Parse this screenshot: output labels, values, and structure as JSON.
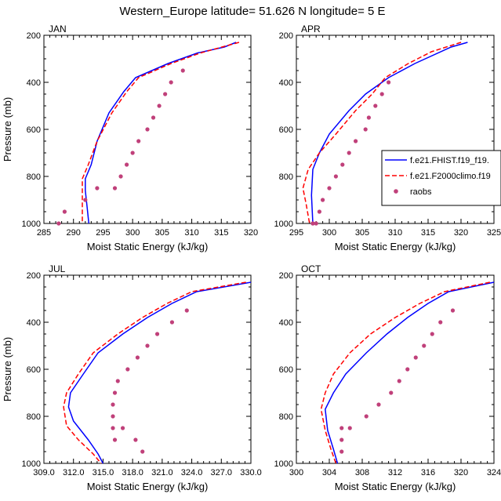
{
  "figure": {
    "title": "Western_Europe  latitude= 51.626 N longitude= 5 E"
  },
  "legend": {
    "entries": [
      {
        "label": "f.e21.FHIST.f19_f19.",
        "color": "#0000ff",
        "style": "solid"
      },
      {
        "label": "f.e21.F2000climo.f19",
        "color": "#ff0000",
        "style": "dashed"
      },
      {
        "label": "raobs",
        "color": "#c0407a",
        "style": "marker"
      }
    ]
  },
  "chart_data": [
    {
      "type": "line",
      "panel_label": "JAN",
      "xlabel": "Moist Static Energy (kJ/kg)",
      "ylabel": "Pressure (mb)",
      "xlim": [
        285,
        320
      ],
      "ylim": [
        1000,
        200
      ],
      "xticks": [
        285,
        290,
        295,
        300,
        305,
        310,
        315,
        320
      ],
      "xtick_labels": [
        "285",
        "290",
        "295",
        "300",
        "305",
        "310",
        "315",
        "320"
      ],
      "yticks": [
        200,
        400,
        600,
        800,
        1000
      ],
      "ytick_labels": [
        "200",
        "400",
        "600",
        "800",
        "1000"
      ],
      "series": [
        {
          "name": "f.e21.FHIST.f19_f19.",
          "x": [
            317.5,
            315.5,
            311.0,
            306.0,
            300.5,
            298.5,
            296.0,
            294.0,
            293.0,
            292.0,
            292.0,
            292.3,
            292.6
          ],
          "y": [
            230,
            250,
            275,
            320,
            380,
            440,
            530,
            650,
            750,
            810,
            860,
            930,
            1000
          ]
        },
        {
          "name": "f.e21.F2000climo.f19",
          "x": [
            318.0,
            311.5,
            306.5,
            301.0,
            299.0,
            296.5,
            294.0,
            292.5,
            291.5,
            291.5,
            291.5
          ],
          "y": [
            230,
            275,
            320,
            380,
            440,
            530,
            650,
            750,
            810,
            880,
            1000
          ]
        },
        {
          "name": "raobs",
          "x": [
            308.5,
            306.5,
            305.5,
            304.5,
            303.5,
            302.5,
            301.0,
            300.0,
            299.0,
            298.0,
            297.0,
            294.0,
            292.0,
            288.5,
            287.5
          ],
          "y": [
            350,
            400,
            450,
            500,
            550,
            600,
            650,
            700,
            750,
            800,
            850,
            850,
            900,
            950,
            1000
          ]
        }
      ]
    },
    {
      "type": "line",
      "panel_label": "APR",
      "xlabel": "Moist Static Energy (kJ/kg)",
      "ylabel": "",
      "xlim": [
        295,
        325
      ],
      "ylim": [
        1000,
        200
      ],
      "xticks": [
        295,
        300,
        305,
        310,
        315,
        320,
        325
      ],
      "xtick_labels": [
        "295",
        "300",
        "305",
        "310",
        "315",
        "320",
        "325"
      ],
      "yticks": [
        200,
        400,
        600,
        800,
        1000
      ],
      "ytick_labels": [
        "200",
        "400",
        "600",
        "800",
        "1000"
      ],
      "series": [
        {
          "name": "f.e21.FHIST.f19_f19.",
          "x": [
            321.0,
            318.5,
            313.0,
            309.0,
            305.5,
            303.0,
            300.0,
            298.5,
            297.5,
            297.3,
            297.5
          ],
          "y": [
            230,
            250,
            320,
            380,
            450,
            520,
            620,
            700,
            770,
            880,
            1000
          ]
        },
        {
          "name": "f.e21.F2000climo.f19",
          "x": [
            320.0,
            315.5,
            312.0,
            308.5,
            306.5,
            304.0,
            301.0,
            298.5,
            296.8,
            296.0,
            296.5,
            297.0
          ],
          "y": [
            230,
            270,
            320,
            380,
            450,
            520,
            620,
            700,
            770,
            850,
            920,
            1000
          ]
        },
        {
          "name": "raobs",
          "x": [
            309.0,
            308.0,
            307.0,
            306.0,
            305.5,
            304.0,
            303.0,
            302.0,
            301.0,
            300.0,
            299.0,
            298.5,
            298.0,
            297.5,
            297.5
          ],
          "y": [
            400,
            450,
            500,
            550,
            600,
            650,
            700,
            750,
            800,
            850,
            900,
            950,
            1000,
            1000,
            1000
          ]
        }
      ]
    },
    {
      "type": "line",
      "panel_label": "JUL",
      "xlabel": "Moist Static Energy (kJ/kg)",
      "ylabel": "Pressure (mb)",
      "xlim": [
        309,
        330
      ],
      "ylim": [
        1000,
        200
      ],
      "xticks": [
        309,
        312,
        315,
        318,
        321,
        324,
        327,
        330
      ],
      "xtick_labels": [
        "309.0",
        "312.0",
        "315.0",
        "318.0",
        "321.0",
        "324.0",
        "327.0",
        "330.0"
      ],
      "yticks": [
        200,
        400,
        600,
        800,
        1000
      ],
      "ytick_labels": [
        "200",
        "400",
        "600",
        "800",
        "1000"
      ],
      "series": [
        {
          "name": "f.e21.FHIST.f19_f19.",
          "x": [
            330.0,
            324.5,
            322.0,
            319.5,
            317.0,
            314.5,
            313.0,
            311.7,
            311.5,
            312.0,
            313.5,
            314.5,
            315.0
          ],
          "y": [
            230,
            270,
            320,
            380,
            450,
            530,
            620,
            700,
            760,
            820,
            900,
            960,
            1000
          ]
        },
        {
          "name": "f.e21.F2000climo.f19",
          "x": [
            329.5,
            324.0,
            321.5,
            319.0,
            316.5,
            314.0,
            312.5,
            311.3,
            311.0,
            311.3,
            312.5,
            314.0,
            314.8
          ],
          "y": [
            230,
            270,
            320,
            380,
            450,
            530,
            620,
            700,
            760,
            840,
            900,
            960,
            1000
          ]
        },
        {
          "name": "raobs",
          "x": [
            323.5,
            322.0,
            320.5,
            319.5,
            318.5,
            317.5,
            316.5,
            316.2,
            316.0,
            316.0,
            316.0,
            316.2,
            317.0,
            318.3,
            319.0
          ],
          "y": [
            350,
            400,
            450,
            500,
            550,
            600,
            650,
            700,
            750,
            800,
            850,
            900,
            850,
            900,
            950
          ]
        }
      ]
    },
    {
      "type": "line",
      "panel_label": "OCT",
      "xlabel": "Moist Static Energy (kJ/kg)",
      "ylabel": "",
      "xlim": [
        300,
        324
      ],
      "ylim": [
        1000,
        200
      ],
      "xticks": [
        300,
        304,
        308,
        312,
        316,
        320,
        324
      ],
      "xtick_labels": [
        "300",
        "304",
        "308",
        "312",
        "316",
        "320",
        "324"
      ],
      "yticks": [
        200,
        400,
        600,
        800,
        1000
      ],
      "ytick_labels": [
        "200",
        "400",
        "600",
        "800",
        "1000"
      ],
      "series": [
        {
          "name": "f.e21.FHIST.f19_f19.",
          "x": [
            324.0,
            318.5,
            316.0,
            313.5,
            311.0,
            308.5,
            306.0,
            304.5,
            303.5,
            303.8,
            304.5,
            305.0
          ],
          "y": [
            230,
            270,
            320,
            380,
            450,
            530,
            620,
            700,
            770,
            860,
            940,
            1000
          ]
        },
        {
          "name": "f.e21.F2000climo.f19",
          "x": [
            323.5,
            318.0,
            315.0,
            312.0,
            309.0,
            306.5,
            304.5,
            303.5,
            303.0,
            303.5,
            304.2,
            304.8
          ],
          "y": [
            230,
            270,
            320,
            380,
            450,
            530,
            620,
            700,
            770,
            860,
            940,
            1000
          ]
        },
        {
          "name": "raobs",
          "x": [
            319.0,
            317.5,
            316.5,
            315.5,
            314.5,
            313.5,
            312.5,
            311.5,
            310.0,
            308.5,
            306.5,
            305.5,
            305.5,
            305.5
          ],
          "y": [
            350,
            400,
            450,
            500,
            550,
            600,
            650,
            700,
            750,
            800,
            850,
            900,
            950,
            850
          ]
        }
      ]
    }
  ]
}
